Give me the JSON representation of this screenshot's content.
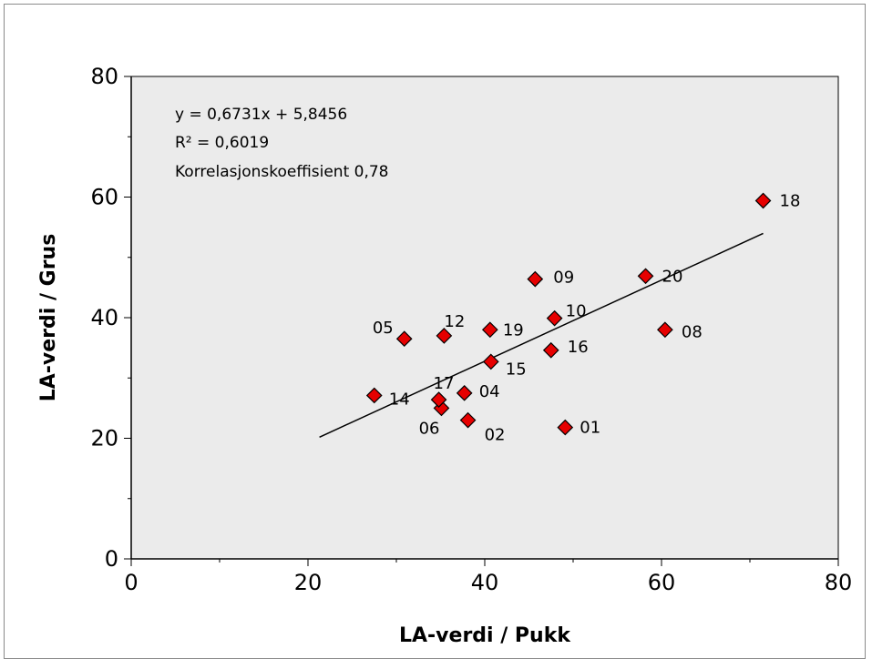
{
  "chart_data": {
    "type": "scatter",
    "xlabel": "LA-verdi / Pukk",
    "ylabel": "LA-verdi / Grus",
    "xlim": [
      0,
      80
    ],
    "ylim": [
      0,
      80
    ],
    "xticks": [
      "0",
      "20",
      "40",
      "60",
      "80"
    ],
    "yticks": [
      "0",
      "20",
      "40",
      "60",
      "80"
    ],
    "grid": false,
    "plot_background": "#ebebeb",
    "marker_color": "#e60000",
    "marker_shape": "diamond",
    "points": [
      {
        "label": "01",
        "x": 49.1,
        "y": 21.8
      },
      {
        "label": "02",
        "x": 38.1,
        "y": 23.0
      },
      {
        "label": "04",
        "x": 37.7,
        "y": 27.5
      },
      {
        "label": "05",
        "x": 30.9,
        "y": 36.5
      },
      {
        "label": "06",
        "x": 35.1,
        "y": 25.0
      },
      {
        "label": "08",
        "x": 60.4,
        "y": 38.0
      },
      {
        "label": "09",
        "x": 45.7,
        "y": 46.4
      },
      {
        "label": "10",
        "x": 47.9,
        "y": 39.9
      },
      {
        "label": "12",
        "x": 35.4,
        "y": 37.0
      },
      {
        "label": "14",
        "x": 27.5,
        "y": 27.1
      },
      {
        "label": "15",
        "x": 40.7,
        "y": 32.7
      },
      {
        "label": "16",
        "x": 47.5,
        "y": 34.6
      },
      {
        "label": "17",
        "x": 34.8,
        "y": 26.4
      },
      {
        "label": "18",
        "x": 71.5,
        "y": 59.4
      },
      {
        "label": "19",
        "x": 40.6,
        "y": 38.0
      },
      {
        "label": "20",
        "x": 58.2,
        "y": 46.9
      }
    ],
    "trendline": {
      "slope": 0.6731,
      "intercept": 5.8456,
      "x_range": [
        21.3,
        71.5
      ]
    },
    "annotations": [
      "y = 0,6731x + 5,8456",
      "R² = 0,6019",
      "Korrelasjonskoeffisient 0,78"
    ]
  }
}
